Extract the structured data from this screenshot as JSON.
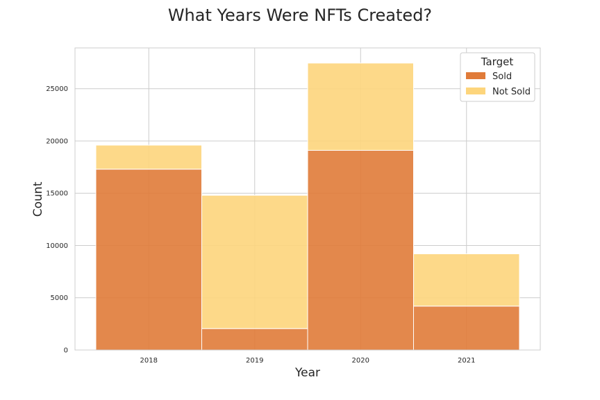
{
  "chart_data": {
    "type": "bar",
    "stacked": true,
    "title": "What Years Were NFTs Created?",
    "xlabel": "Year",
    "ylabel": "Count",
    "categories": [
      "2018",
      "2019",
      "2020",
      "2021"
    ],
    "series": [
      {
        "name": "Sold",
        "values": [
          17300,
          2050,
          19100,
          4200
        ],
        "color": "#e07b39"
      },
      {
        "name": "Not Sold",
        "values": [
          2300,
          12750,
          8350,
          5000
        ],
        "color": "#fdd57c"
      }
    ],
    "ylim": [
      0,
      28900
    ],
    "yticks": [
      0,
      5000,
      10000,
      15000,
      20000,
      25000
    ],
    "grid": true,
    "legend": {
      "title": "Target",
      "position": "top-right"
    }
  }
}
